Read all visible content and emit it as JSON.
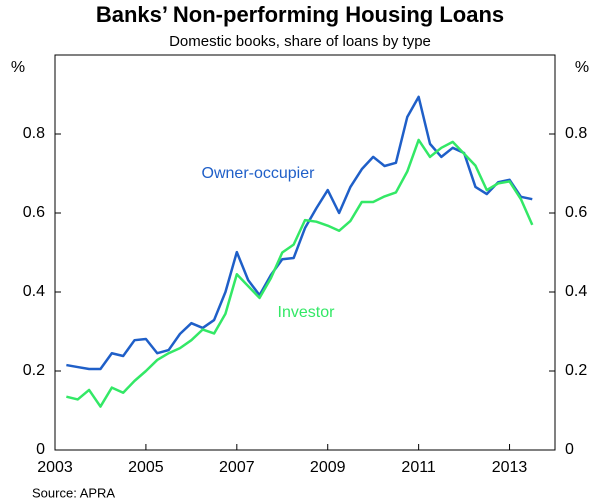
{
  "chart_data": {
    "type": "line",
    "title": "Banks’ Non-performing Housing Loans",
    "subtitle": "Domestic books, share of loans by type",
    "y_label": "%",
    "source": "Source: APRA",
    "x": [
      2003.25,
      2003.5,
      2003.75,
      2004,
      2004.25,
      2004.5,
      2004.75,
      2005,
      2005.25,
      2005.5,
      2005.75,
      2006,
      2006.25,
      2006.5,
      2006.75,
      2007,
      2007.25,
      2007.5,
      2007.75,
      2008,
      2008.25,
      2008.5,
      2008.75,
      2009,
      2009.25,
      2009.5,
      2009.75,
      2010,
      2010.25,
      2010.5,
      2010.75,
      2011,
      2011.25,
      2011.5,
      2011.75,
      2012,
      2012.25,
      2012.5,
      2012.75,
      2013,
      2013.25,
      2013.5
    ],
    "series": [
      {
        "name": "Owner-occupier",
        "color": "#1f5fc8",
        "values": [
          0.215,
          0.21,
          0.205,
          0.205,
          0.245,
          0.238,
          0.278,
          0.281,
          0.245,
          0.253,
          0.294,
          0.321,
          0.309,
          0.329,
          0.4,
          0.501,
          0.43,
          0.392,
          0.443,
          0.483,
          0.486,
          0.562,
          0.612,
          0.658,
          0.6,
          0.666,
          0.711,
          0.742,
          0.719,
          0.727,
          0.843,
          0.894,
          0.775,
          0.742,
          0.765,
          0.752,
          0.666,
          0.648,
          0.678,
          0.684,
          0.641,
          0.635
        ]
      },
      {
        "name": "Investor",
        "color": "#33e866",
        "values": [
          0.135,
          0.128,
          0.152,
          0.11,
          0.158,
          0.145,
          0.175,
          0.2,
          0.228,
          0.245,
          0.258,
          0.278,
          0.305,
          0.295,
          0.345,
          0.445,
          0.415,
          0.385,
          0.435,
          0.5,
          0.52,
          0.582,
          0.578,
          0.568,
          0.555,
          0.58,
          0.628,
          0.628,
          0.642,
          0.652,
          0.705,
          0.785,
          0.742,
          0.765,
          0.78,
          0.75,
          0.72,
          0.658,
          0.675,
          0.68,
          0.635,
          0.57
        ]
      }
    ],
    "xlim": [
      2003,
      2014
    ],
    "xticks": [
      2003,
      2005,
      2007,
      2009,
      2011,
      2013
    ],
    "ylim": [
      0,
      1
    ],
    "yticks": [
      0,
      0.2,
      0.4,
      0.6,
      0.8
    ]
  }
}
